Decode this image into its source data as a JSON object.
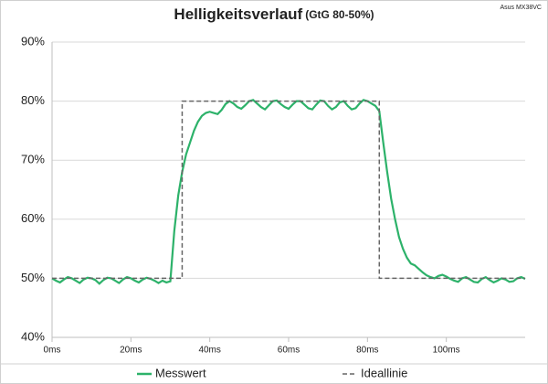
{
  "chart_data": {
    "type": "line",
    "title": "Helligkeitsverlauf",
    "subtitle": "(GtG 80-50%)",
    "annotation": "Asus MX38VC",
    "xlim": [
      0,
      120
    ],
    "xticks": [
      {
        "value": 0,
        "label": "0ms"
      },
      {
        "value": 20,
        "label": "20ms"
      },
      {
        "value": 40,
        "label": "40ms"
      },
      {
        "value": 60,
        "label": "60ms"
      },
      {
        "value": 80,
        "label": "80ms"
      },
      {
        "value": 100,
        "label": "100ms"
      }
    ],
    "ylim": [
      40,
      90
    ],
    "yticks": [
      {
        "value": 40,
        "label": "40%"
      },
      {
        "value": 50,
        "label": "50%"
      },
      {
        "value": 60,
        "label": "60%"
      },
      {
        "value": 70,
        "label": "70%"
      },
      {
        "value": 80,
        "label": "80%"
      },
      {
        "value": 90,
        "label": "90%"
      }
    ],
    "grid": true,
    "legend": "bottom",
    "series": [
      {
        "name": "Messwert",
        "color": "#2db26a",
        "dash": false,
        "x": [
          0,
          1,
          2,
          3,
          4,
          5,
          6,
          7,
          8,
          9,
          10,
          11,
          12,
          13,
          14,
          15,
          16,
          17,
          18,
          19,
          20,
          21,
          22,
          23,
          24,
          25,
          26,
          27,
          28,
          29,
          30,
          31,
          32,
          33,
          34,
          35,
          36,
          37,
          38,
          39,
          40,
          41,
          42,
          43,
          44,
          45,
          46,
          47,
          48,
          49,
          50,
          51,
          52,
          53,
          54,
          55,
          56,
          57,
          58,
          59,
          60,
          61,
          62,
          63,
          64,
          65,
          66,
          67,
          68,
          69,
          70,
          71,
          72,
          73,
          74,
          75,
          76,
          77,
          78,
          79,
          80,
          81,
          82,
          83,
          84,
          85,
          86,
          87,
          88,
          89,
          90,
          91,
          92,
          93,
          94,
          95,
          96,
          97,
          98,
          99,
          100,
          101,
          102,
          103,
          104,
          105,
          106,
          107,
          108,
          109,
          110,
          111,
          112,
          113,
          114,
          115,
          116,
          117,
          118,
          119,
          120
        ],
        "values": [
          50,
          49.6,
          49.3,
          49.8,
          50.2,
          50,
          49.6,
          49.2,
          49.8,
          50.1,
          50,
          49.7,
          49.1,
          49.7,
          50.1,
          50,
          49.6,
          49.2,
          49.8,
          50.2,
          50,
          49.6,
          49.3,
          49.8,
          50.1,
          49.9,
          49.6,
          49.2,
          49.6,
          49.3,
          49.5,
          58,
          64,
          68,
          71,
          73,
          75,
          76.5,
          77.5,
          78,
          78.2,
          78,
          77.8,
          78.5,
          79.5,
          80,
          79.6,
          79,
          78.7,
          79.3,
          80,
          80.2,
          79.6,
          79,
          78.6,
          79.3,
          80,
          80.1,
          79.5,
          79,
          78.7,
          79.4,
          80,
          80,
          79.4,
          78.8,
          78.6,
          79.4,
          80.1,
          80,
          79.2,
          78.6,
          79,
          79.8,
          80,
          79.2,
          78.6,
          78.8,
          79.6,
          80.2,
          80,
          79.6,
          79.2,
          78.3,
          73,
          68,
          63.5,
          60,
          57,
          55,
          53.5,
          52.5,
          52.2,
          51.6,
          51,
          50.5,
          50.2,
          50,
          50.4,
          50.6,
          50.3,
          49.9,
          49.6,
          49.4,
          50,
          50.2,
          49.8,
          49.4,
          49.3,
          49.9,
          50.2,
          49.7,
          49.3,
          49.6,
          50,
          49.8,
          49.4,
          49.5,
          50,
          50.2,
          49.9
        ]
      },
      {
        "name": "Ideallinie",
        "color": "#666666",
        "dash": true,
        "x": [
          0,
          33,
          33,
          83,
          83,
          120
        ],
        "values": [
          50,
          50,
          80,
          80,
          50,
          50
        ]
      }
    ]
  }
}
